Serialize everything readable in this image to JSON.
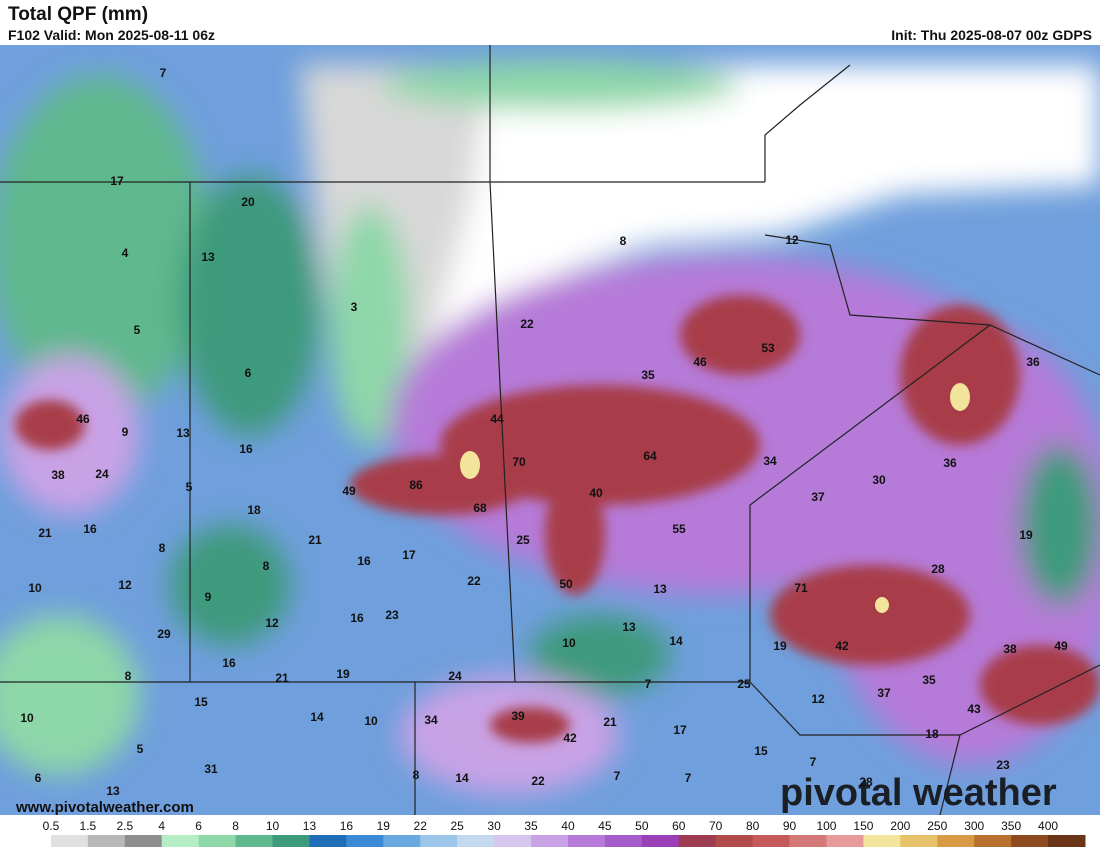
{
  "header": {
    "title": "Total QPF (mm)",
    "valid": "F102 Valid: Mon 2025-08-11 06z",
    "init": "Init: Thu 2025-08-07 00z GDPS"
  },
  "map_labels": [
    "7",
    "17",
    "20",
    "13",
    "4",
    "3",
    "8",
    "12",
    "22",
    "5",
    "6",
    "35",
    "46",
    "53",
    "36",
    "46",
    "9",
    "13",
    "44",
    "16",
    "70",
    "64",
    "34",
    "36",
    "30",
    "38",
    "24",
    "5",
    "49",
    "86",
    "40",
    "37",
    "18",
    "68",
    "55",
    "21",
    "16",
    "21",
    "25",
    "19",
    "8",
    "16",
    "17",
    "8",
    "28",
    "22",
    "50",
    "13",
    "71",
    "10",
    "12",
    "9",
    "23",
    "16",
    "12",
    "13",
    "14",
    "10",
    "19",
    "42",
    "38",
    "49",
    "29",
    "16",
    "8",
    "21",
    "19",
    "24",
    "7",
    "25",
    "37",
    "35",
    "12",
    "15",
    "10",
    "14",
    "10",
    "34",
    "39",
    "21",
    "43",
    "42",
    "17",
    "18",
    "5",
    "15",
    "7",
    "31",
    "8",
    "14",
    "22",
    "7",
    "7",
    "23",
    "6",
    "13",
    "28"
  ],
  "watermark": {
    "url": "www.pivotalweather.com",
    "logo": "pivotal weather"
  },
  "legend": {
    "labels": [
      "0.5",
      "1.5",
      "2.5",
      "4",
      "6",
      "8",
      "10",
      "13",
      "16",
      "19",
      "22",
      "25",
      "30",
      "35",
      "40",
      "45",
      "50",
      "60",
      "70",
      "80",
      "90",
      "100",
      "150",
      "200",
      "250",
      "300",
      "350",
      "400"
    ],
    "colors": [
      "#ffffff",
      "#e0e0e0",
      "#b8b8b8",
      "#8e8e8e",
      "#b5eec4",
      "#8ed7a8",
      "#5fb88e",
      "#3d9a7c",
      "#1f6fb8",
      "#3b8ad6",
      "#6aa8e0",
      "#9cc5ea",
      "#c4d9f0",
      "#d6c6ee",
      "#c9a2e6",
      "#b67ad8",
      "#a45cc9",
      "#9a3fb5",
      "#9e3c52",
      "#b14a4a",
      "#c45a5a",
      "#d47878",
      "#e69a9a",
      "#f2e49a",
      "#e8c26a",
      "#d89a45",
      "#b8702e",
      "#8c4a1e",
      "#6a3416"
    ]
  }
}
